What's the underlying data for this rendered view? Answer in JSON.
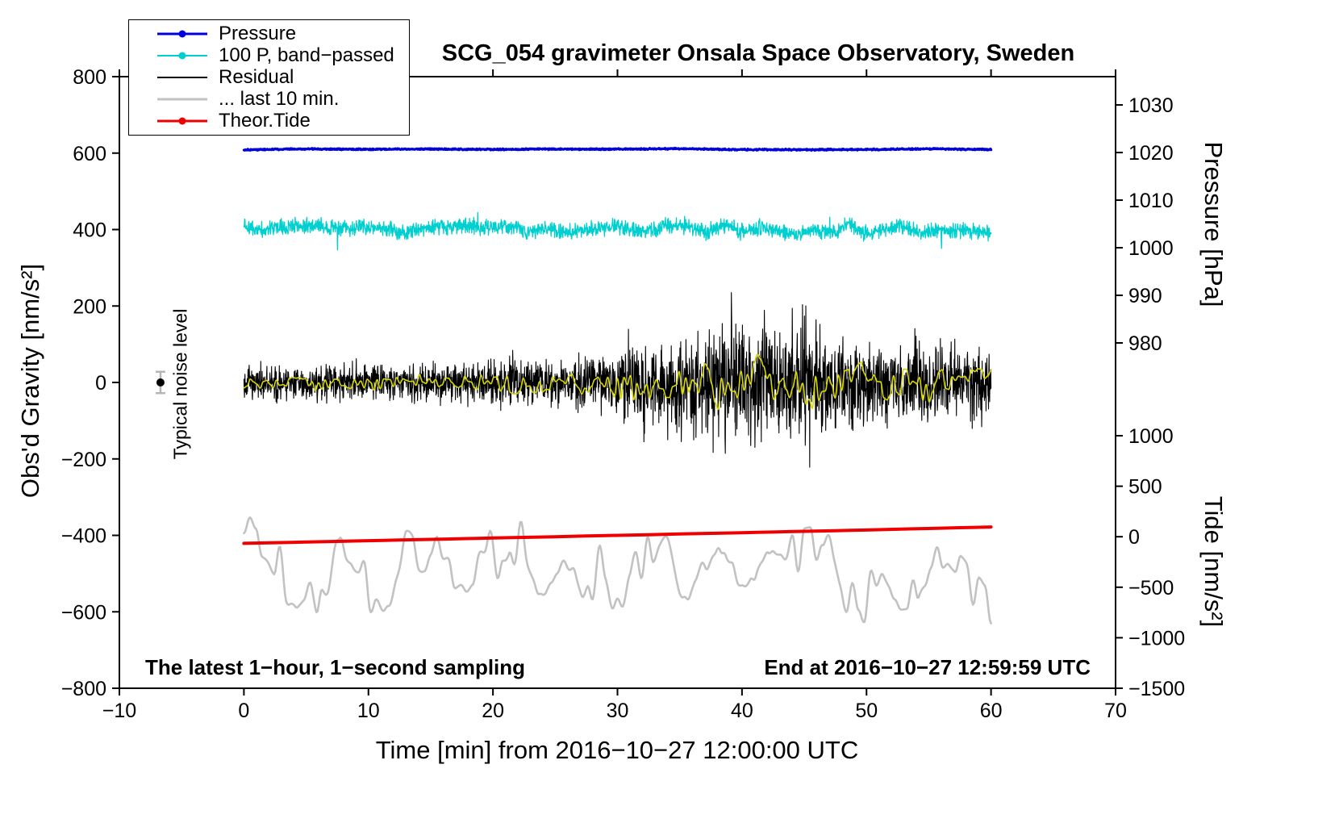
{
  "title": "SCG_054 gravimeter Onsala Space Observatory, Sweden",
  "legend": {
    "items": [
      {
        "label": "Pressure",
        "color": "#0000dd",
        "marker": "dot",
        "sample_width": 3
      },
      {
        "label": "100 P, band−passed",
        "color": "#00cfcf",
        "marker": "dot",
        "sample_width": 2
      },
      {
        "label": "Residual",
        "color": "#000000",
        "marker": "none",
        "sample_width": 2
      },
      {
        "label": "... last 10 min.",
        "color": "#c2c2c2",
        "marker": "none",
        "sample_width": 3
      },
      {
        "label": "Theor.Tide",
        "color": "#ee0000",
        "marker": "dot",
        "sample_width": 3
      }
    ]
  },
  "annotations": {
    "noise_level": "Typical noise level",
    "sampling": "The latest 1−hour, 1−second sampling",
    "end_time": "End at 2016−10−27 12:59:59 UTC"
  },
  "chart_data": {
    "type": "line",
    "title": "SCG_054 gravimeter Onsala Space Observatory, Sweden",
    "xlabel": "Time [min] from 2016−10−27 12:00:00 UTC",
    "x_axis": {
      "min": -10,
      "max": 70,
      "ticks": [
        -10,
        0,
        10,
        20,
        30,
        40,
        50,
        60,
        70
      ]
    },
    "y_axis_left": {
      "label": "Obs'd Gravity [nm/s²]",
      "min": -800,
      "max": 800,
      "ticks": [
        800,
        600,
        400,
        200,
        0,
        -200,
        -400,
        -600,
        -800
      ]
    },
    "y_axis_pressure": {
      "label": "Pressure [hPa]",
      "ticks": [
        1030,
        1020,
        1010,
        1000,
        990,
        980
      ],
      "anchor_value": 980,
      "anchor_gravity": 103.4,
      "gravity_per_unit": 12.452
    },
    "y_axis_tide": {
      "label": "Tide [nm/s²]",
      "ticks": [
        1000,
        500,
        0,
        -500,
        -1000,
        -1500
      ],
      "anchor_value": 0,
      "anchor_gravity": -403.6,
      "gravity_per_unit": 0.26424
    },
    "grid": false,
    "legend_position": "top-left",
    "noise_marker": {
      "label": "Typical noise level",
      "x": -6.7,
      "value": 0,
      "half_range": 28
    },
    "series": [
      {
        "id": "last10",
        "name": "... last 10 min.",
        "color": "#c2c2c2",
        "width": 2.6,
        "z": 1,
        "kind": "smooth_noise",
        "x_start": 0,
        "x_end": 60,
        "baseline": -500,
        "noise_amp": 135,
        "n": 620,
        "seed": 104,
        "note": "residual of last 10 min stretched over plot, offset to −500, range ≈ −700 to −370"
      },
      {
        "id": "tide",
        "name": "Theor.Tide",
        "color": "#ee0000",
        "width": 4,
        "z": 2,
        "kind": "points",
        "x": [
          0,
          10,
          20,
          30,
          40,
          50,
          60
        ],
        "y": [
          -421,
          -414,
          -407,
          -400,
          -393,
          -386,
          -378
        ],
        "tide_axis_values": [
          -66,
          -39,
          -13,
          14,
          40,
          67,
          97
        ]
      },
      {
        "id": "bandpassed_pressure",
        "name": "100 P, band−passed",
        "color": "#00cfcf",
        "width": 1.3,
        "z": 3,
        "kind": "hf_noise",
        "x_start": 0,
        "x_end": 60,
        "baseline": 400,
        "noise_amp": 25,
        "n": 2100,
        "seed": 102,
        "note": "100 × band−passed pressure, offset to +400, typical spread ±40"
      },
      {
        "id": "pressure",
        "name": "Pressure",
        "color": "#0000dd",
        "width": 3.2,
        "z": 4,
        "kind": "flat_noise",
        "x_start": 0,
        "x_end": 60,
        "baseline": 610,
        "noise_amp": 2.2,
        "n": 1500,
        "seed": 101,
        "approx_level_hPa": 1020.5
      },
      {
        "id": "residual",
        "name": "Residual",
        "color": "#000000",
        "width": 1.1,
        "z": 5,
        "kind": "enveloped_noise",
        "x_start": 0,
        "x_end": 60,
        "baseline": 0,
        "n": 2700,
        "seed": 103,
        "envelope_x": [
          0,
          4,
          8,
          12,
          16,
          20,
          22,
          24,
          26,
          28,
          30,
          32,
          34,
          36,
          38,
          39,
          40,
          41,
          42,
          43,
          44,
          45,
          46,
          47,
          48,
          50,
          52,
          54,
          56,
          58,
          60
        ],
        "envelope_amp": [
          60,
          65,
          70,
          68,
          72,
          80,
          95,
          80,
          85,
          100,
          130,
          170,
          160,
          190,
          230,
          250,
          190,
          200,
          215,
          195,
          205,
          235,
          225,
          170,
          155,
          150,
          140,
          150,
          140,
          130,
          115
        ],
        "note": "1-second residual around 0; noise grows after ~28 min, peaks ≈ ±250 near 38−46 min"
      },
      {
        "id": "yellow_overlay",
        "name": "smoothed residual (yellow, unlabeled)",
        "color": "#d6d600",
        "width": 1.6,
        "z": 6,
        "kind": "smooth_enveloped",
        "x_start": 0,
        "x_end": 60,
        "baseline": 0,
        "n": 1500,
        "seed": 105,
        "envelope_from": "residual",
        "envelope_scale": 0.3
      }
    ]
  }
}
